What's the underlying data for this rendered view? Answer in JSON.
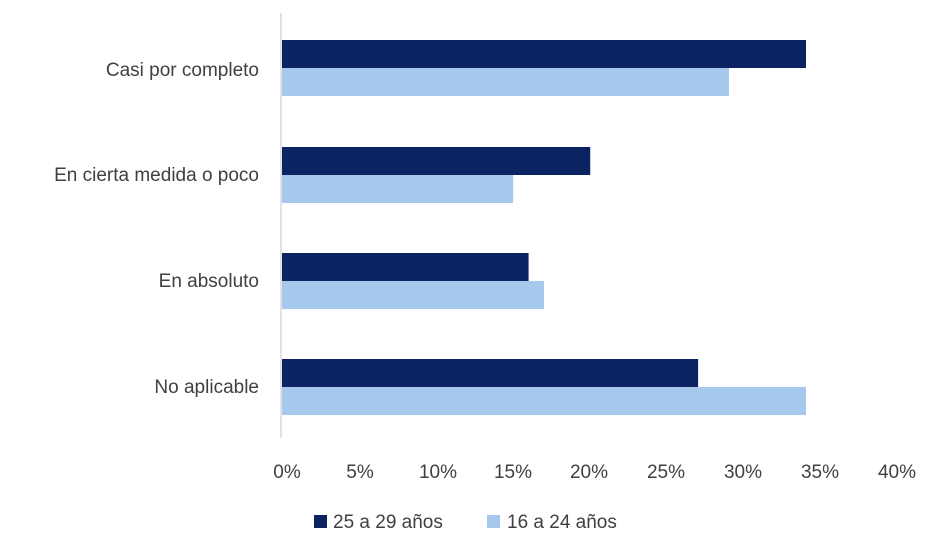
{
  "chart_data": {
    "type": "bar",
    "orientation": "horizontal",
    "title": "",
    "xlabel": "",
    "ylabel": "",
    "categories": [
      "Casi por completo",
      "En cierta medida o poco",
      "En absoluto",
      "No aplicable"
    ],
    "series": [
      {
        "name": "25 a 29 años",
        "color": "#0b2361",
        "values": [
          34,
          20,
          16,
          27
        ]
      },
      {
        "name": "16 a 24 años",
        "color": "#a6c8ec",
        "values": [
          29,
          15,
          17,
          34
        ]
      }
    ],
    "xlim": [
      0,
      40
    ],
    "xticks": [
      0,
      5,
      10,
      15,
      20,
      25,
      30,
      35,
      40
    ],
    "xtick_labels": [
      "0%",
      "5%",
      "10%",
      "15%",
      "20%",
      "25%",
      "30%",
      "35%",
      "40%"
    ],
    "grid": false,
    "legend_position": "bottom"
  }
}
